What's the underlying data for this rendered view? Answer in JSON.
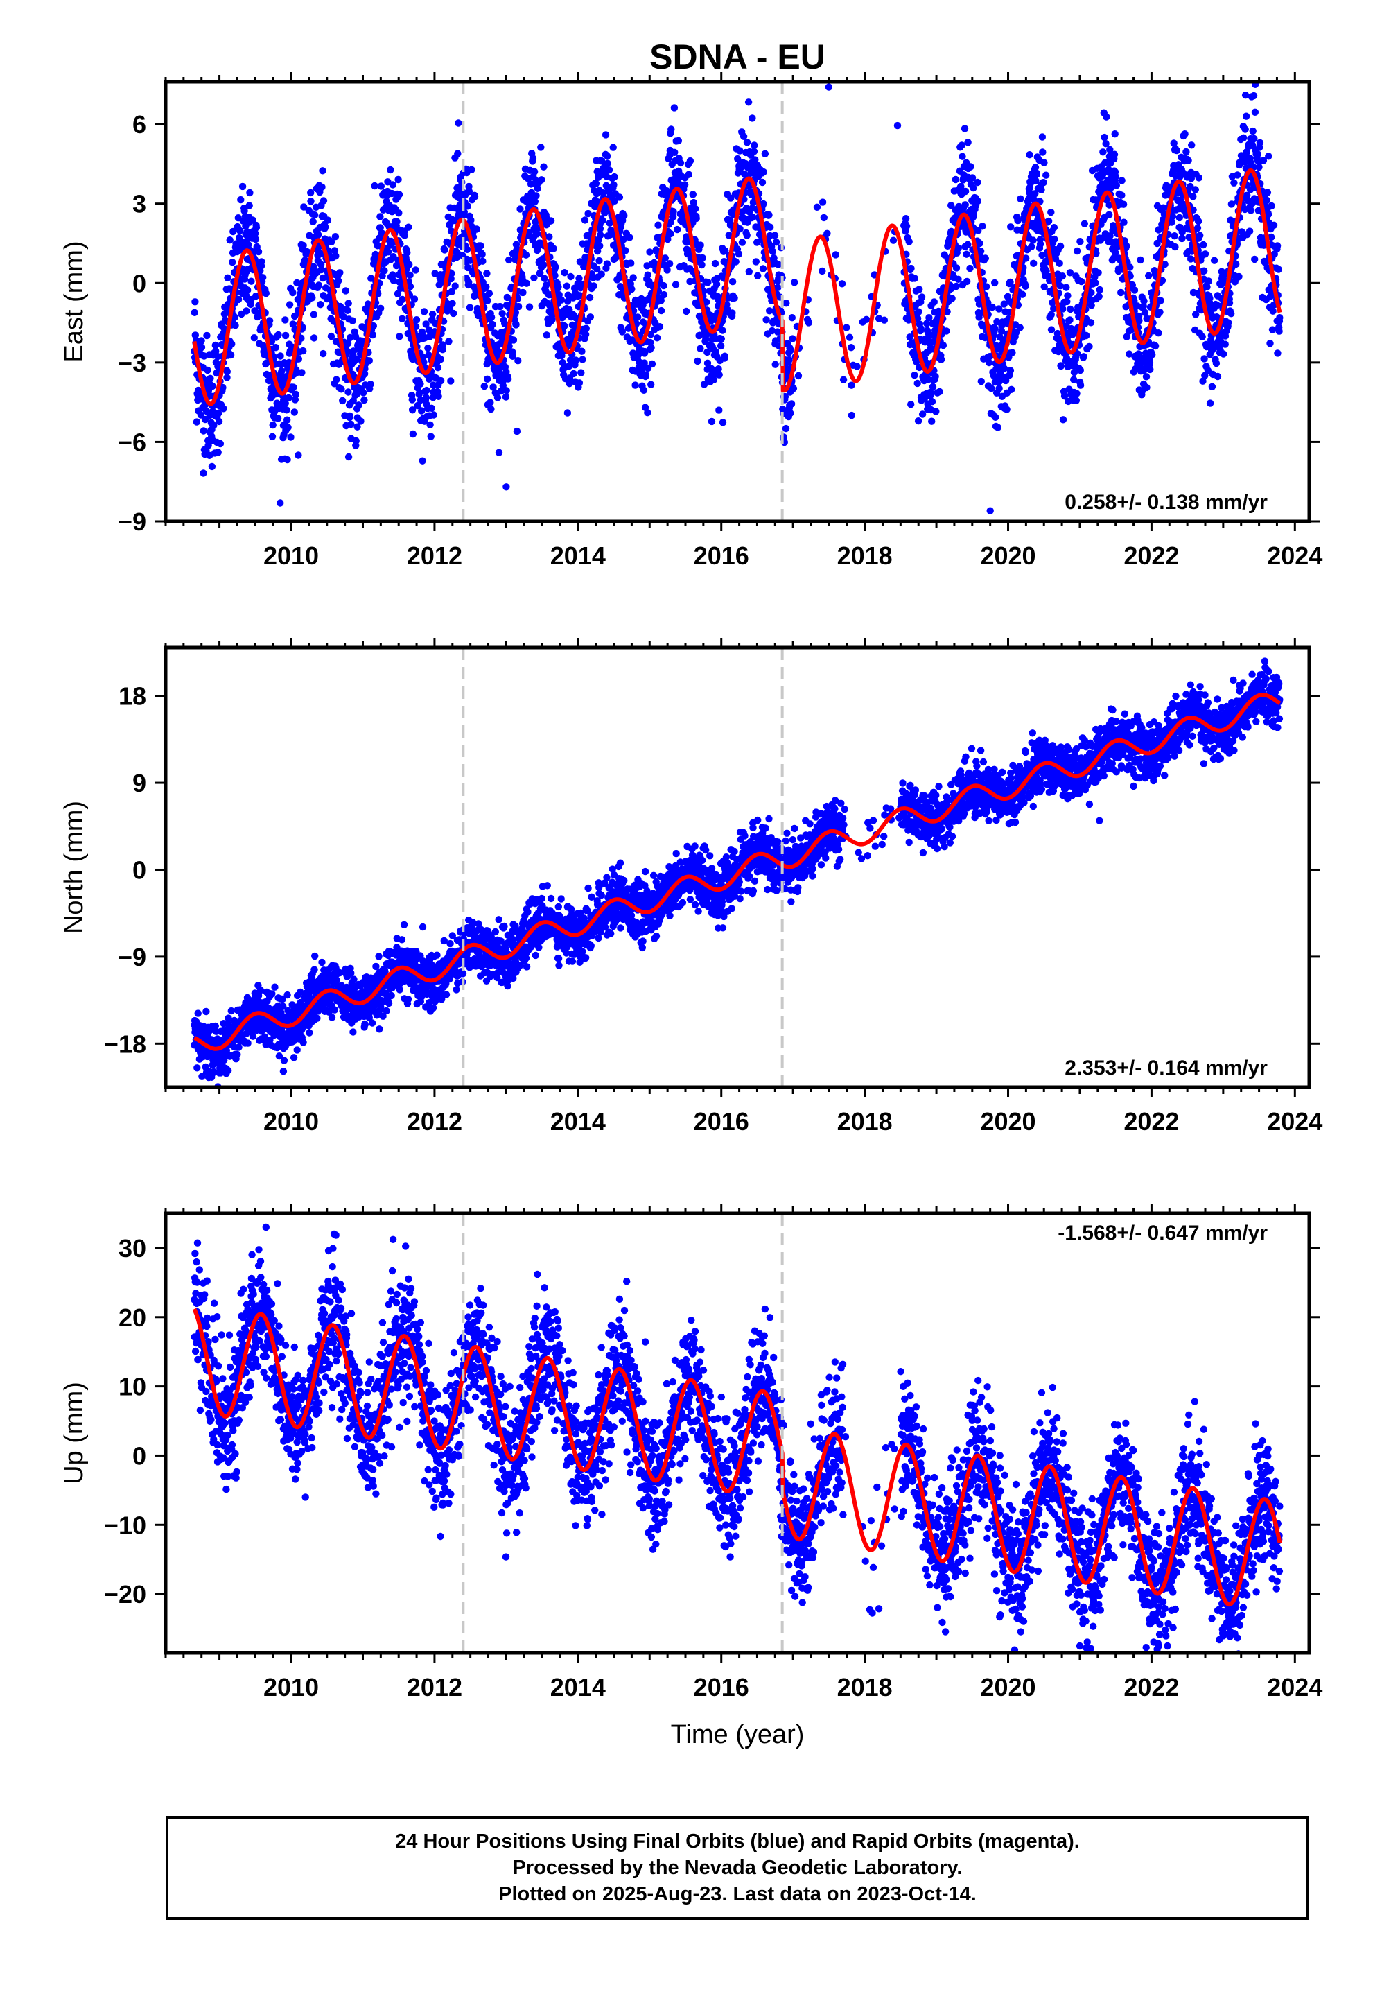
{
  "title": "SDNA - EU",
  "colors": {
    "points": "#0000ff",
    "fit": "#ff0000",
    "breaks": "#c8c8c8",
    "frame": "#000000"
  },
  "footer": {
    "line1": "24 Hour Positions Using Final Orbits (blue) and Rapid Orbits (magenta).",
    "line2": "Processed by the Nevada Geodetic Laboratory.",
    "line3": "Plotted on 2025-Aug-23. Last data on 2023-Oct-14."
  },
  "chart_data": [
    {
      "type": "scatter",
      "ylabel": "East (mm)",
      "xlabel": "",
      "xlim": [
        2008.25,
        2024.2
      ],
      "ylim": [
        -9,
        7.6
      ],
      "xticks": [
        2010,
        2012,
        2014,
        2016,
        2018,
        2020,
        2022,
        2024
      ],
      "yticks": [
        -9,
        -6,
        -3,
        0,
        3,
        6
      ],
      "ytick_labels": [
        "−9",
        "−6",
        "−3",
        "0",
        "3",
        "6"
      ],
      "rate_label": "0.258+/- 0.138 mm/yr",
      "rate_position": "bottom-right",
      "breaks": [
        2012.4,
        2016.85
      ],
      "data_range": [
        2008.65,
        2023.79
      ],
      "gap": [
        2017.0,
        2018.55
      ],
      "fit": {
        "trend_mm_per_yr": 0.258,
        "ref_year": 2016,
        "segments": [
          {
            "start": 2008.65,
            "end": 2016.85,
            "offset": 1.0,
            "slope": 0.13,
            "amp_start": 2.8,
            "amp_end": 2.8,
            "peak_phase": 0.38
          },
          {
            "start": 2016.85,
            "end": 2023.79,
            "offset": -1.6,
            "slope": 0.13,
            "amp_start": 2.8,
            "amp_end": 3.0,
            "peak_phase": 0.38
          }
        ]
      },
      "scatter_noise_mm": 1.2,
      "outliers": [
        [
          2010.1,
          -6.5
        ],
        [
          2011.7,
          -5.7
        ],
        [
          2012.9,
          -6.4
        ],
        [
          2013.15,
          -5.6
        ],
        [
          2013.0,
          -7.7
        ],
        [
          2017.5,
          7.4
        ],
        [
          2019.75,
          -8.6
        ]
      ]
    },
    {
      "type": "scatter",
      "ylabel": "North (mm)",
      "xlabel": "",
      "xlim": [
        2008.25,
        2024.2
      ],
      "ylim": [
        -22.5,
        23
      ],
      "xticks": [
        2010,
        2012,
        2014,
        2016,
        2018,
        2020,
        2022,
        2024
      ],
      "yticks": [
        -18,
        -9,
        0,
        9,
        18
      ],
      "ytick_labels": [
        "−18",
        "−9",
        "0",
        "9",
        "18"
      ],
      "rate_label": "2.353+/- 0.164 mm/yr",
      "rate_position": "bottom-right",
      "breaks": [
        2012.4,
        2016.85
      ],
      "data_range": [
        2008.65,
        2023.79
      ],
      "gap": [
        2017.7,
        2018.5
      ],
      "fit": {
        "trend_mm_per_yr": 2.353,
        "ref_year": 2016,
        "segments": [
          {
            "start": 2008.65,
            "end": 2023.79,
            "offset": -0.8,
            "slope": 0.0,
            "amp_start": 1.2,
            "amp_end": 1.2,
            "peak_phase": 0.5
          }
        ]
      },
      "scatter_noise_mm": 1.4,
      "outliers": [
        [
          2008.85,
          -21.5
        ]
      ]
    },
    {
      "type": "scatter",
      "ylabel": "Up (mm)",
      "xlabel": "Time (year)",
      "xlim": [
        2008.25,
        2024.2
      ],
      "ylim": [
        -28.5,
        35
      ],
      "xticks": [
        2010,
        2012,
        2014,
        2016,
        2018,
        2020,
        2022,
        2024
      ],
      "yticks": [
        -20,
        -10,
        0,
        10,
        20,
        30
      ],
      "ytick_labels": [
        "−20",
        "−10",
        "0",
        "10",
        "20",
        "30"
      ],
      "rate_label": "-1.568+/- 0.647 mm/yr",
      "rate_position": "top-right",
      "breaks": [
        2012.4,
        2016.85
      ],
      "data_range": [
        2008.65,
        2023.79
      ],
      "gap": [
        2017.7,
        2018.5
      ],
      "fit": {
        "trend_mm_per_yr": -1.568,
        "ref_year": 2016,
        "segments": [
          {
            "start": 2008.65,
            "end": 2016.85,
            "offset": 2.6,
            "slope": 0.0,
            "amp_start": 7.8,
            "amp_end": 7.6,
            "peak_phase": 0.58
          },
          {
            "start": 2016.85,
            "end": 2023.79,
            "offset": -2.4,
            "slope": 0.0,
            "amp_start": 8.0,
            "amp_end": 8.0,
            "peak_phase": 0.58
          }
        ]
      },
      "scatter_noise_mm": 4.5,
      "outliers": [
        [
          2009.65,
          33.0
        ],
        [
          2010.6,
          32.0
        ],
        [
          2010.2,
          -6.0
        ],
        [
          2021.0,
          -27.5
        ],
        [
          2022.1,
          -27.5
        ]
      ]
    }
  ]
}
